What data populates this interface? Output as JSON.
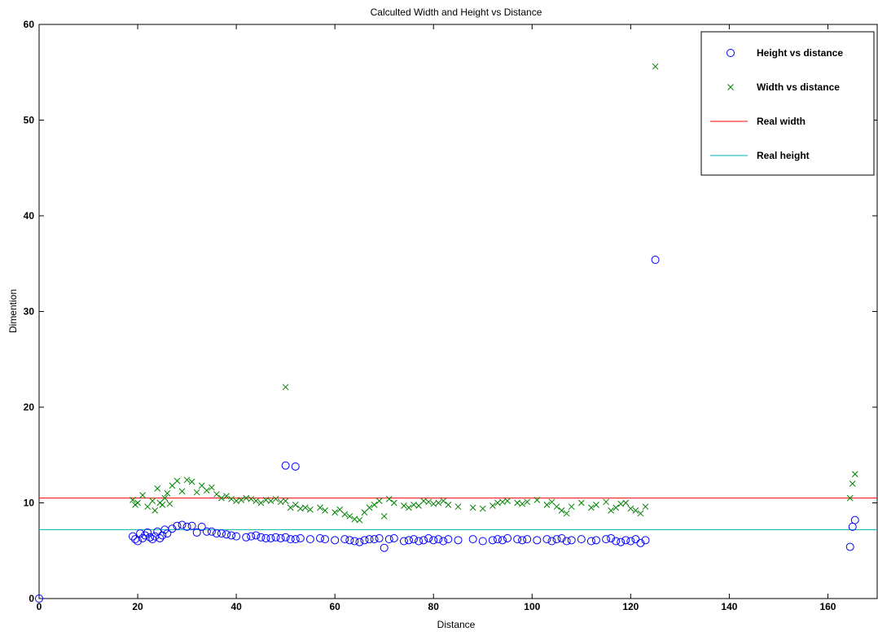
{
  "chart_data": {
    "type": "scatter",
    "title": "Calculted Width and Height vs Distance",
    "xlabel": "Distance",
    "ylabel": "Dimention",
    "xlim": [
      0,
      170
    ],
    "ylim": [
      0,
      60
    ],
    "xticks": [
      0,
      20,
      40,
      60,
      80,
      100,
      120,
      140,
      160
    ],
    "yticks": [
      0,
      10,
      20,
      30,
      40,
      50,
      60
    ],
    "grid": false,
    "legend_position": "top-right",
    "series": [
      {
        "name": "Height vs distance",
        "marker": "circle",
        "color": "#0000ff",
        "x": [
          0,
          19,
          19.5,
          20,
          20.5,
          21,
          21.5,
          22,
          22.5,
          23,
          23.5,
          24,
          24.5,
          25,
          25.5,
          26,
          27,
          28,
          29,
          30,
          31,
          32,
          33,
          34,
          35,
          36,
          37,
          38,
          39,
          40,
          42,
          43,
          44,
          45,
          46,
          47,
          48,
          49,
          50,
          51,
          52,
          53,
          55,
          57,
          58,
          60,
          62,
          63,
          64,
          65,
          66,
          67,
          68,
          69,
          70,
          71,
          72,
          74,
          75,
          76,
          77,
          78,
          79,
          80,
          81,
          82,
          83,
          85,
          88,
          90,
          92,
          93,
          94,
          95,
          97,
          98,
          99,
          101,
          103,
          104,
          105,
          106,
          107,
          108,
          110,
          112,
          113,
          115,
          116,
          117,
          118,
          119,
          120,
          121,
          122,
          123,
          50,
          52,
          125,
          164.5,
          165,
          165.5
        ],
        "y": [
          0,
          6.5,
          6.2,
          6.0,
          6.8,
          6.3,
          6.6,
          6.9,
          6.4,
          6.2,
          6.5,
          7.0,
          6.3,
          6.6,
          7.2,
          6.8,
          7.3,
          7.6,
          7.7,
          7.5,
          7.6,
          6.9,
          7.5,
          7.0,
          7.0,
          6.8,
          6.8,
          6.7,
          6.6,
          6.5,
          6.4,
          6.5,
          6.6,
          6.4,
          6.3,
          6.3,
          6.4,
          6.3,
          6.4,
          6.2,
          6.2,
          6.3,
          6.2,
          6.3,
          6.2,
          6.1,
          6.2,
          6.1,
          6.0,
          5.9,
          6.1,
          6.2,
          6.2,
          6.3,
          5.3,
          6.2,
          6.3,
          6.0,
          6.1,
          6.2,
          6.0,
          6.1,
          6.3,
          6.1,
          6.2,
          6.0,
          6.2,
          6.1,
          6.2,
          6.0,
          6.1,
          6.2,
          6.1,
          6.3,
          6.2,
          6.1,
          6.2,
          6.1,
          6.2,
          6.0,
          6.2,
          6.3,
          6.0,
          6.1,
          6.2,
          6.0,
          6.1,
          6.2,
          6.3,
          6.0,
          5.9,
          6.1,
          6.0,
          6.2,
          5.8,
          6.1,
          13.9,
          13.8,
          35.4,
          5.4,
          7.5,
          8.2
        ],
        "note_points_at_far_right": true
      },
      {
        "name": "Width vs distance",
        "marker": "x",
        "color": "#008000",
        "x": [
          19,
          19.5,
          20,
          21,
          22,
          23,
          23.5,
          24,
          24.5,
          25,
          25.5,
          26,
          26.5,
          27,
          28,
          29,
          30,
          31,
          32,
          33,
          34,
          35,
          36,
          37,
          38,
          39,
          40,
          41,
          42,
          43,
          44,
          45,
          46,
          47,
          48,
          49,
          50,
          51,
          52,
          53,
          54,
          55,
          57,
          58,
          60,
          61,
          62,
          63,
          64,
          65,
          66,
          67,
          68,
          69,
          70,
          71,
          72,
          74,
          75,
          76,
          77,
          78,
          79,
          80,
          81,
          82,
          83,
          85,
          88,
          90,
          92,
          93,
          94,
          95,
          97,
          98,
          99,
          101,
          103,
          104,
          105,
          106,
          107,
          108,
          110,
          112,
          113,
          115,
          116,
          117,
          118,
          119,
          120,
          121,
          122,
          123,
          50,
          125,
          164.5,
          165,
          165.5
        ],
        "y": [
          10.3,
          9.8,
          10.0,
          10.8,
          9.6,
          10.2,
          9.2,
          11.5,
          10.0,
          9.8,
          10.5,
          11.0,
          9.9,
          11.8,
          12.3,
          11.2,
          12.4,
          12.2,
          11.1,
          11.8,
          11.3,
          11.6,
          10.9,
          10.5,
          10.7,
          10.4,
          10.2,
          10.3,
          10.5,
          10.4,
          10.2,
          10.0,
          10.3,
          10.2,
          10.4,
          10.1,
          10.2,
          9.5,
          9.8,
          9.4,
          9.5,
          9.3,
          9.5,
          9.2,
          9.0,
          9.3,
          8.8,
          8.6,
          8.3,
          8.2,
          9.0,
          9.5,
          9.8,
          10.2,
          8.6,
          10.4,
          10.0,
          9.7,
          9.5,
          9.8,
          9.7,
          10.2,
          10.1,
          9.9,
          10.0,
          10.2,
          9.8,
          9.6,
          9.5,
          9.4,
          9.7,
          10.0,
          10.1,
          10.2,
          10.0,
          9.9,
          10.1,
          10.3,
          9.8,
          10.1,
          9.6,
          9.2,
          8.9,
          9.6,
          10.0,
          9.5,
          9.8,
          10.1,
          9.2,
          9.5,
          9.9,
          10.0,
          9.4,
          9.2,
          8.9,
          9.6,
          22.1,
          55.6,
          10.5,
          12.0,
          13.0
        ]
      },
      {
        "name": "Real width",
        "type": "hline",
        "color": "#ff0000",
        "y": 10.5
      },
      {
        "name": "Real height",
        "type": "hline",
        "color": "#00b3b3",
        "y": 7.2
      }
    ]
  }
}
